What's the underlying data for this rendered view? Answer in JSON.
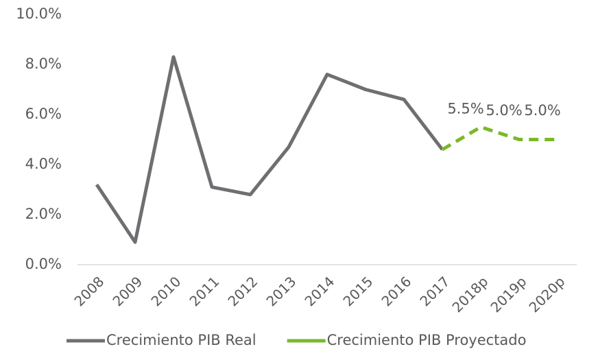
{
  "chart_data": {
    "type": "line",
    "categories": [
      "2008",
      "2009",
      "2010",
      "2011",
      "2012",
      "2013",
      "2014",
      "2015",
      "2016",
      "2017",
      "2018p",
      "2019p",
      "2020p"
    ],
    "series": [
      {
        "name": "Crecimiento PIB Real",
        "color": "#6e6f72",
        "dashed": false,
        "values": [
          3.2,
          0.9,
          8.3,
          3.1,
          2.8,
          4.7,
          7.6,
          7.0,
          6.6,
          4.6,
          null,
          null,
          null
        ]
      },
      {
        "name": "Crecimiento PIB Proyectado",
        "color": "#7ab829",
        "dashed": true,
        "values": [
          null,
          null,
          null,
          null,
          null,
          null,
          null,
          null,
          null,
          4.6,
          5.5,
          5.0,
          5.0
        ],
        "value_labels": [
          null,
          null,
          null,
          null,
          null,
          null,
          null,
          null,
          null,
          null,
          "5.5%",
          "5.0%",
          "5.0%"
        ]
      }
    ],
    "ylim": [
      0,
      10
    ],
    "yticks": [
      {
        "value": 0,
        "label": "0.0%"
      },
      {
        "value": 2,
        "label": "2.0%"
      },
      {
        "value": 4,
        "label": "4.0%"
      },
      {
        "value": 6,
        "label": "6.0%"
      },
      {
        "value": 8,
        "label": "8.0%"
      },
      {
        "value": 10,
        "label": "10.0%"
      }
    ],
    "grid": false,
    "legend": "bottom"
  }
}
